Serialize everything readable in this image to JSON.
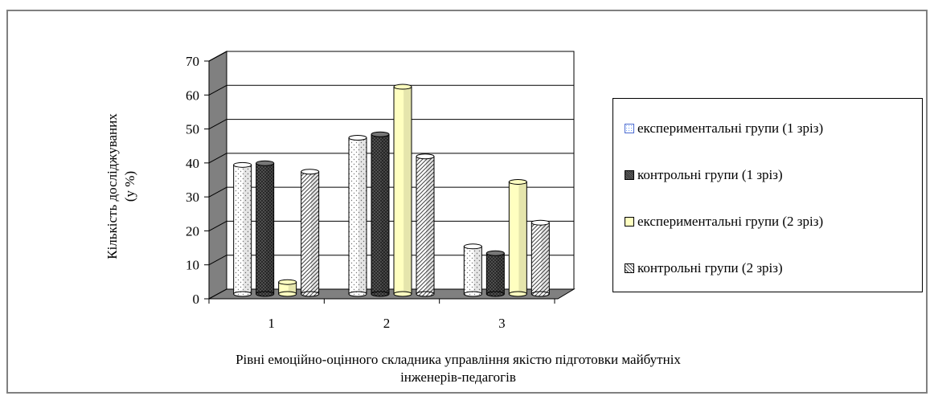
{
  "chart_data": {
    "type": "bar",
    "title": "",
    "ylabel_lines": [
      "Кількість  досліджуваних",
      "(у %)"
    ],
    "xlabel_lines": [
      "Рівні  емоційно-оцінного складника управління якістю  підготовки  майбутніх",
      "інженерів-педагогів"
    ],
    "categories": [
      "1",
      "2",
      "3"
    ],
    "ylim": [
      0,
      70
    ],
    "yticks": [
      0,
      10,
      20,
      30,
      40,
      50,
      60,
      70
    ],
    "grid": true,
    "legend_position": "right",
    "series": [
      {
        "name": "експериментальні групи (1 зріз)",
        "values": [
          38,
          46,
          14
        ],
        "color": "#ffffff",
        "pattern": "dots"
      },
      {
        "name": "контрольні групи (1 зріз)",
        "values": [
          38.5,
          47,
          12
        ],
        "color": "#555555",
        "pattern": "crosshatch"
      },
      {
        "name": "експериментальні групи (2 зріз)",
        "values": [
          3.5,
          61,
          33
        ],
        "color": "#ffffc0",
        "pattern": "solid"
      },
      {
        "name": "контрольні групи (2 зріз)",
        "values": [
          36,
          40.5,
          21
        ],
        "color": "#ffffff",
        "pattern": "diagonal"
      }
    ]
  }
}
